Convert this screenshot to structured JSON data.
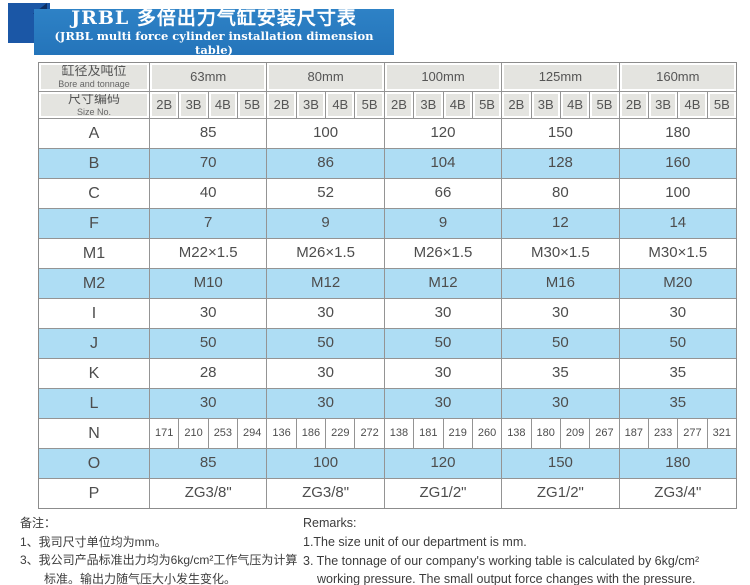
{
  "banner": {
    "title_zh": "JRBL 多倍出力气缸安装尺寸表",
    "title_en": "(JRBL multi force cylinder installation dimension table)"
  },
  "colors": {
    "banner_blue": "#2779bd",
    "ribbon_blue": "#1b57a6",
    "fold_navy": "#0d2f63",
    "header_gray": "#e4e4e0",
    "stripe_blue": "#aeddf4",
    "grid_line": "#949494"
  },
  "table": {
    "corner_title_zh": "缸径及吨位",
    "corner_title_en": "Bore and tonnage",
    "size_no_zh": "尺寸编码",
    "size_no_en": "Size No.",
    "bore_columns": [
      "63mm",
      "80mm",
      "100mm",
      "125mm",
      "160mm"
    ],
    "sub_columns": [
      "2B",
      "3B",
      "4B",
      "5B"
    ],
    "rows": [
      {
        "label": "A",
        "values": [
          "85",
          "100",
          "120",
          "150",
          "180"
        ]
      },
      {
        "label": "B",
        "values": [
          "70",
          "86",
          "104",
          "128",
          "160"
        ]
      },
      {
        "label": "C",
        "values": [
          "40",
          "52",
          "66",
          "80",
          "100"
        ]
      },
      {
        "label": "F",
        "values": [
          "7",
          "9",
          "9",
          "12",
          "14"
        ]
      },
      {
        "label": "M1",
        "values": [
          "M22×1.5",
          "M26×1.5",
          "M26×1.5",
          "M30×1.5",
          "M30×1.5"
        ]
      },
      {
        "label": "M2",
        "values": [
          "M10",
          "M12",
          "M12",
          "M16",
          "M20"
        ]
      },
      {
        "label": "I",
        "values": [
          "30",
          "30",
          "30",
          "30",
          "30"
        ]
      },
      {
        "label": "J",
        "values": [
          "50",
          "50",
          "50",
          "50",
          "50"
        ]
      },
      {
        "label": "K",
        "values": [
          "28",
          "30",
          "30",
          "35",
          "35"
        ]
      },
      {
        "label": "L",
        "values": [
          "30",
          "30",
          "30",
          "30",
          "35"
        ]
      },
      {
        "label": "N",
        "split_values": [
          [
            "171",
            "210",
            "253",
            "294"
          ],
          [
            "136",
            "186",
            "229",
            "272"
          ],
          [
            "138",
            "181",
            "219",
            "260"
          ],
          [
            "138",
            "180",
            "209",
            "267"
          ],
          [
            "187",
            "233",
            "277",
            "321"
          ]
        ]
      },
      {
        "label": "O",
        "values": [
          "85",
          "100",
          "120",
          "150",
          "180"
        ]
      },
      {
        "label": "P",
        "values": [
          "ZG3/8\"",
          "ZG3/8\"",
          "ZG1/2\"",
          "ZG1/2\"",
          "ZG3/4\""
        ]
      }
    ]
  },
  "notes_zh": {
    "heading": "备注：",
    "items": [
      "1、我司尺寸单位均为mm。",
      "3、我公司产品标准出力均为6kg/cm²工作气压为计算标准。输出力随气压大小发生变化。"
    ]
  },
  "notes_en": {
    "heading": "Remarks:",
    "items": [
      "1.The size unit of our department is mm.",
      "3. The tonnage of our company's working table is calculated by 6kg/cm² working pressure. The small output force changes with the pressure."
    ]
  }
}
